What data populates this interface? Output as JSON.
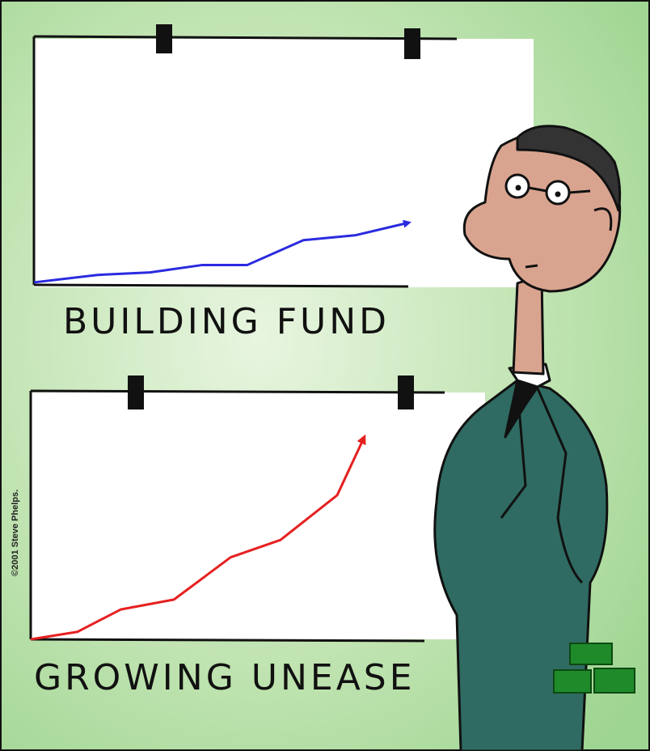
{
  "chart_data": [
    {
      "type": "line",
      "title": "BUILDING FUND",
      "color": "#2a2ae0",
      "x": [
        0,
        17,
        31,
        45,
        57,
        72,
        86,
        100
      ],
      "values": [
        1,
        4,
        5,
        8,
        8,
        18,
        20,
        25
      ],
      "xlim": [
        0,
        100
      ],
      "ylim": [
        0,
        100
      ]
    },
    {
      "type": "line",
      "title": "GROWING UNEASE",
      "color": "#e62020",
      "x": [
        0,
        14,
        27,
        43,
        60,
        75,
        92,
        100
      ],
      "values": [
        0,
        3,
        12,
        16,
        33,
        40,
        58,
        81
      ],
      "xlim": [
        0,
        100
      ],
      "ylim": [
        0,
        100
      ]
    }
  ],
  "credit": "©2001 Steve Phelps."
}
